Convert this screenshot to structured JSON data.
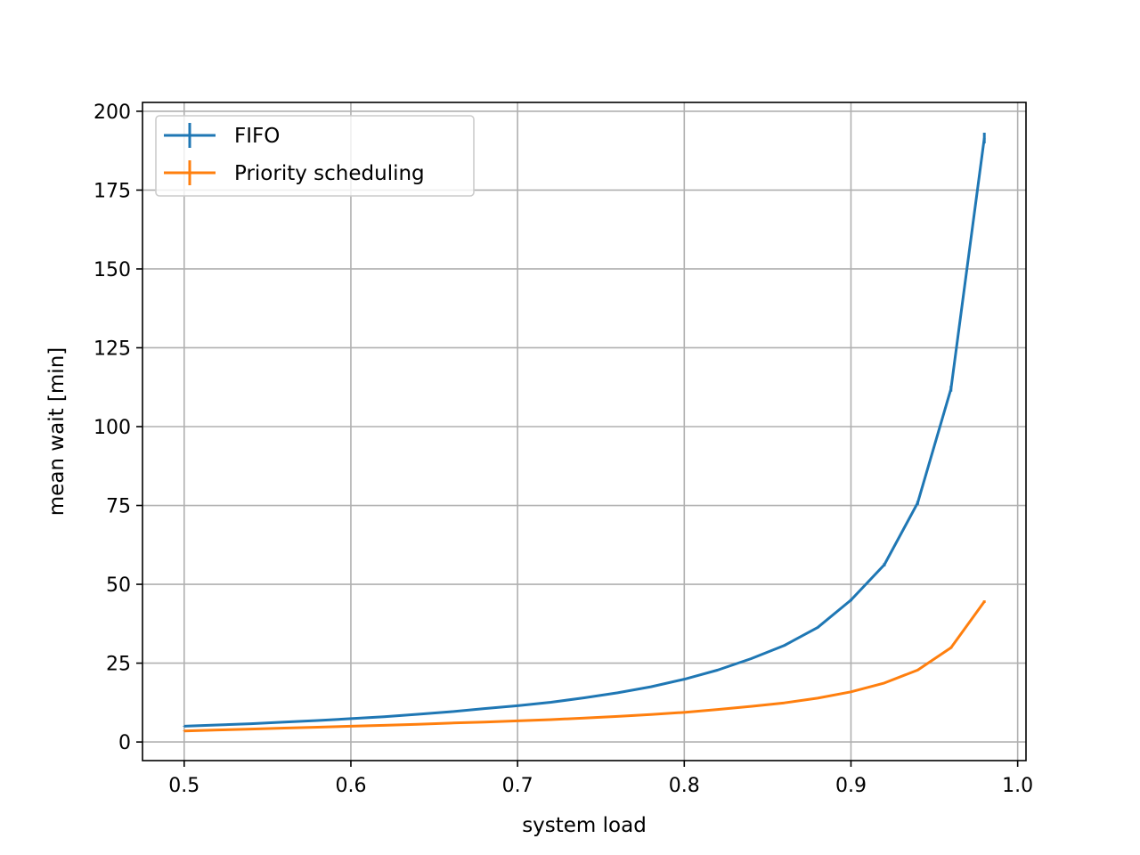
{
  "chart_data": {
    "type": "line",
    "xlabel": "system load",
    "ylabel": "mean wait [min]",
    "xlim": [
      0.475,
      1.005
    ],
    "ylim": [
      -5.9,
      202.8
    ],
    "xticks": [
      0.5,
      0.6,
      0.7,
      0.8,
      0.9,
      1.0
    ],
    "xtick_labels": [
      "0.5",
      "0.6",
      "0.7",
      "0.8",
      "0.9",
      "1.0"
    ],
    "yticks": [
      0,
      25,
      50,
      75,
      100,
      125,
      150,
      175,
      200
    ],
    "ytick_labels": [
      "0",
      "25",
      "50",
      "75",
      "100",
      "125",
      "150",
      "175",
      "200"
    ],
    "grid": true,
    "legend_position": "top-left",
    "series": [
      {
        "name": "FIFO",
        "color": "#1f77b4",
        "error_bars": true,
        "x": [
          0.5,
          0.52,
          0.54,
          0.56,
          0.58,
          0.6,
          0.62,
          0.64,
          0.66,
          0.68,
          0.7,
          0.72,
          0.74,
          0.76,
          0.78,
          0.8,
          0.82,
          0.84,
          0.86,
          0.88,
          0.9,
          0.92,
          0.94,
          0.96,
          0.98
        ],
        "y": [
          5.0,
          5.4,
          5.8,
          6.3,
          6.8,
          7.4,
          8.0,
          8.8,
          9.6,
          10.6,
          11.5,
          12.6,
          14.0,
          15.6,
          17.5,
          19.9,
          22.8,
          26.4,
          30.6,
          36.3,
          45.0,
          56.2,
          75.8,
          112.0,
          191.5
        ],
        "y_err": [
          0.1,
          0.1,
          0.1,
          0.1,
          0.1,
          0.1,
          0.1,
          0.1,
          0.1,
          0.1,
          0.1,
          0.1,
          0.1,
          0.1,
          0.1,
          0.2,
          0.2,
          0.2,
          0.3,
          0.3,
          0.4,
          0.5,
          0.6,
          0.9,
          1.7
        ]
      },
      {
        "name": "Priority scheduling",
        "color": "#ff7f0e",
        "error_bars": true,
        "x": [
          0.5,
          0.52,
          0.54,
          0.56,
          0.58,
          0.6,
          0.62,
          0.64,
          0.66,
          0.68,
          0.7,
          0.72,
          0.74,
          0.76,
          0.78,
          0.8,
          0.82,
          0.84,
          0.86,
          0.88,
          0.9,
          0.92,
          0.94,
          0.96,
          0.98
        ],
        "y": [
          3.5,
          3.8,
          4.1,
          4.4,
          4.7,
          5.0,
          5.3,
          5.6,
          6.0,
          6.3,
          6.7,
          7.1,
          7.6,
          8.1,
          8.7,
          9.4,
          10.3,
          11.3,
          12.4,
          13.9,
          15.9,
          18.7,
          22.8,
          29.9,
          44.5
        ],
        "y_err": [
          0.1,
          0.1,
          0.1,
          0.1,
          0.1,
          0.1,
          0.1,
          0.1,
          0.1,
          0.1,
          0.1,
          0.1,
          0.1,
          0.1,
          0.1,
          0.1,
          0.1,
          0.1,
          0.1,
          0.1,
          0.2,
          0.2,
          0.2,
          0.3,
          0.4
        ]
      }
    ]
  }
}
